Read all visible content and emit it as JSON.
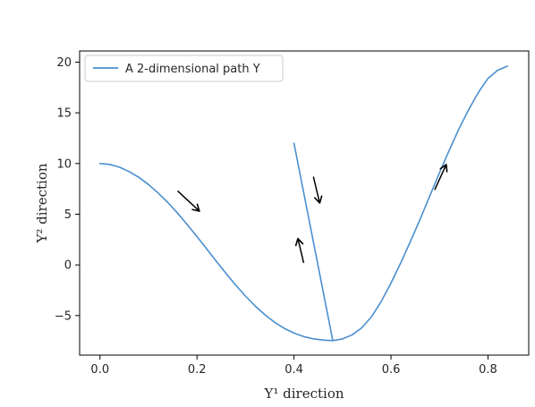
{
  "chart_data": {
    "type": "line",
    "xlabel": "Y¹ direction",
    "ylabel": "Y² direction",
    "xlim": [
      -0.042,
      0.884
    ],
    "ylim": [
      -8.9,
      21.1
    ],
    "xticks": [
      0.0,
      0.2,
      0.4,
      0.6,
      0.8
    ],
    "xtick_labels": [
      "0.0",
      "0.2",
      "0.4",
      "0.6",
      "0.8"
    ],
    "yticks": [
      -5,
      0,
      5,
      10,
      15,
      20
    ],
    "ytick_labels": [
      "−5",
      "0",
      "5",
      "10",
      "15",
      "20"
    ],
    "grid": false,
    "legend_position": "top-left",
    "series": [
      {
        "name": "A 2-dimensional path Y",
        "color": "#4a8fcf",
        "x": [
          0.0,
          0.02,
          0.04,
          0.06,
          0.08,
          0.1,
          0.12,
          0.14,
          0.16,
          0.18,
          0.2,
          0.22,
          0.24,
          0.26,
          0.28,
          0.3,
          0.32,
          0.34,
          0.36,
          0.38,
          0.4,
          0.42,
          0.44,
          0.46,
          0.48,
          0.4,
          0.48,
          0.5,
          0.52,
          0.54,
          0.56,
          0.58,
          0.6,
          0.62,
          0.64,
          0.66,
          0.68,
          0.7,
          0.72,
          0.74,
          0.76,
          0.78,
          0.8,
          0.82,
          0.84
        ],
        "y": [
          10.0,
          9.91,
          9.64,
          9.21,
          8.64,
          7.93,
          7.09,
          6.14,
          5.1,
          3.97,
          2.79,
          1.58,
          0.35,
          -0.85,
          -2.01,
          -3.08,
          -4.06,
          -4.92,
          -5.66,
          -6.26,
          -6.73,
          -7.07,
          -7.29,
          -7.42,
          -7.47,
          12.0,
          -7.47,
          -7.3,
          -6.9,
          -6.2,
          -5.1,
          -3.6,
          -1.8,
          0.2,
          2.3,
          4.5,
          6.8,
          9.1,
          11.3,
          13.4,
          15.3,
          17.0,
          18.4,
          19.2,
          19.6
        ]
      }
    ],
    "annotations": [
      {
        "type": "arrow",
        "from": [
          0.16,
          7.3
        ],
        "to": [
          0.205,
          5.3
        ],
        "color": "#000000"
      },
      {
        "type": "arrow",
        "from": [
          0.44,
          8.7
        ],
        "to": [
          0.453,
          6.1
        ],
        "color": "#000000"
      },
      {
        "type": "arrow",
        "from": [
          0.42,
          0.2
        ],
        "to": [
          0.408,
          2.6
        ],
        "color": "#000000"
      },
      {
        "type": "arrow",
        "from": [
          0.69,
          7.4
        ],
        "to": [
          0.714,
          9.9
        ],
        "color": "#000000"
      }
    ]
  }
}
